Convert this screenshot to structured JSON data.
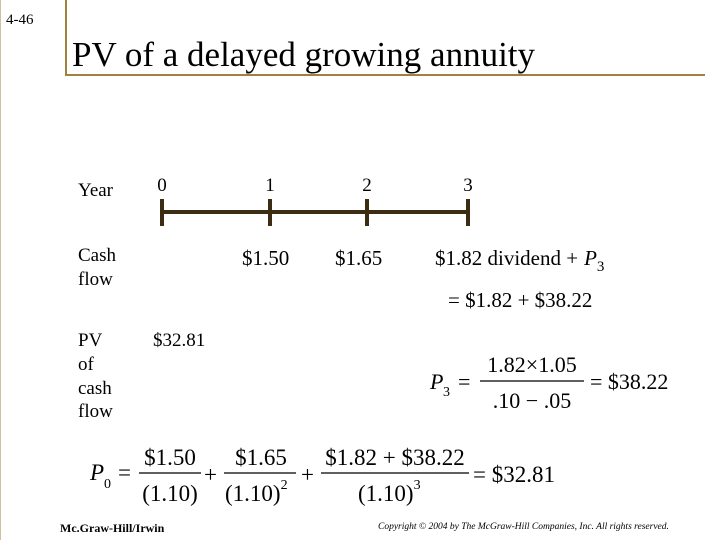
{
  "slide_number": "4-46",
  "title": "PV of a delayed growing annuity",
  "timeline": {
    "year_label": "Year",
    "cash_flow_label": [
      "Cash",
      "flow"
    ],
    "pv_label": [
      "PV",
      "of",
      "cash",
      "flow"
    ],
    "years": [
      "0",
      "1",
      "2",
      "3"
    ],
    "cash_flows": [
      "$1.50",
      "$1.65",
      "$1.82 dividend +"
    ],
    "terminal_symbol": "P",
    "terminal_subscript": "3",
    "terminal_note": "= $1.82 + $38.22",
    "pv_value": "$32.81"
  },
  "formula_p3": {
    "symbol": "P",
    "subscript": "3",
    "equals": "=",
    "numerator": "1.82×1.05",
    "denominator": ".10 − .05",
    "result": "= $38.22"
  },
  "formula_p0": {
    "symbol": "P",
    "subscript": "0",
    "equals": "=",
    "terms": [
      {
        "numerator": "$1.50",
        "denominator": "(1.10)",
        "exponent": null
      },
      {
        "numerator": "$1.65",
        "denominator": "(1.10)",
        "exponent": "2"
      },
      {
        "numerator": "$1.82 + $38.22",
        "denominator": "(1.10)",
        "exponent": "3"
      }
    ],
    "plus": "+",
    "result": "= $32.81"
  },
  "footer": {
    "publisher": "Mc.Graw-Hill/Irwin",
    "copyright": "Copyright © 2004 by The McGraw-Hill Companies, Inc.  All rights reserved."
  }
}
